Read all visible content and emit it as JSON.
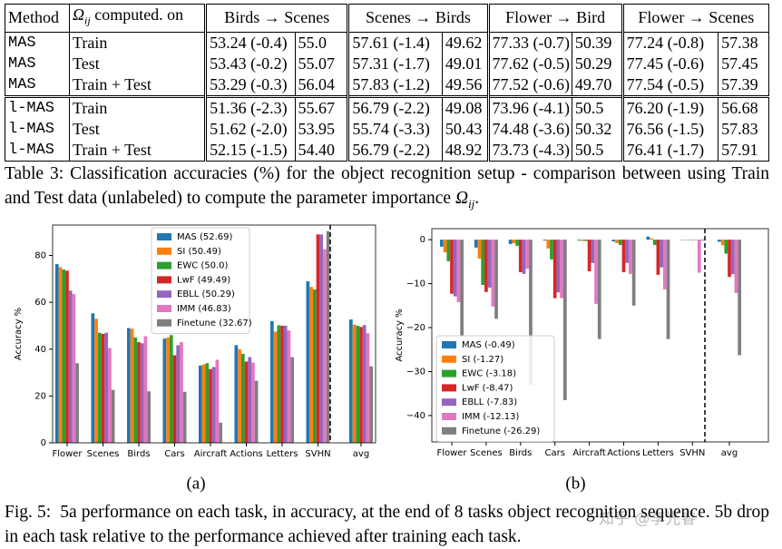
{
  "table": {
    "header": {
      "method": "Method",
      "omega": "Ω",
      "omega_sub": "ij",
      "computed": "computed. on",
      "groups": [
        "Birds → Scenes",
        "Scenes → Birds",
        "Flower → Bird",
        "Flower → Scenes"
      ]
    },
    "rows": [
      [
        "MAS",
        "Train",
        "53.24 (-0.4)",
        "55.0",
        "57.61 (-1.4)",
        "49.62",
        "77.33 (-0.7)",
        "50.39",
        "77.24 (-0.8)",
        "57.38"
      ],
      [
        "MAS",
        "Test",
        "53.43 (-0.2)",
        "55.07",
        "57.31 (-1.7)",
        "49.01",
        "77.62 (-0.5)",
        "50.29",
        "77.45 (-0.6)",
        "57.45"
      ],
      [
        "MAS",
        "Train + Test",
        "53.29 (-0.3)",
        "56.04",
        "57.83 (-1.2)",
        "49.56",
        "77.52 (-0.6)",
        "49.70",
        "77.54 (-0.5)",
        "57.39"
      ],
      [
        "l-MAS",
        "Train",
        "51.36 (-2.3)",
        "55.67",
        "56.79 (-2.2)",
        "49.08",
        "73.96 (-4.1)",
        "50.5",
        "76.20 (-1.9)",
        "56.68"
      ],
      [
        "l-MAS",
        "Test",
        "51.62 (-2.0)",
        "53.95",
        "55.74 (-3.3)",
        "50.43",
        "74.48 (-3.6)",
        "50.32",
        "76.56 (-1.5)",
        "57.83"
      ],
      [
        "l-MAS",
        "Train + Test",
        "52.15 (-1.5)",
        "54.40",
        "56.79 (-2.2)",
        "48.92",
        "73.73 (-4.3)",
        "50.5",
        "76.41 (-1.7)",
        "57.91"
      ]
    ]
  },
  "table_caption": {
    "label": "Table 3:",
    "text": "Classification accuracies (%) for the object recognition setup - comparison between using Train and Test data (unlabeled) to compute the parameter importance ",
    "symbol": "Ω",
    "subscript": "ij",
    "end": "."
  },
  "chart_data": [
    {
      "type": "bar",
      "ylabel": "Accuracy %",
      "panel_label": "(a)",
      "legend": "upper center",
      "divider": true,
      "grid": false,
      "categories": [
        "Flower",
        "Scenes",
        "Birds",
        "Cars",
        "Aircraft",
        "Actions",
        "Letters",
        "SVHN",
        "avg"
      ],
      "ylim": [
        0,
        93
      ],
      "yticks": [
        0,
        20,
        40,
        60,
        80
      ],
      "series": [
        {
          "name": "MAS (52.69)",
          "color": "#1f77b4",
          "values": [
            76.3,
            55.3,
            49,
            44.5,
            33,
            41.7,
            52,
            69,
            52.69
          ]
        },
        {
          "name": "SI (50.49)",
          "color": "#ff7f0e",
          "values": [
            75,
            53,
            48.7,
            45,
            33.5,
            40,
            47.5,
            66.6,
            50.49
          ]
        },
        {
          "name": "EWC (50.0)",
          "color": "#2ca02c",
          "values": [
            74,
            47,
            45,
            46,
            34,
            38,
            50.2,
            65.5,
            50.0
          ]
        },
        {
          "name": "LwF (49.49)",
          "color": "#d62728",
          "values": [
            73.5,
            46.5,
            43,
            37.4,
            31.5,
            34.7,
            50,
            89,
            49.49
          ]
        },
        {
          "name": "EBLL (50.29)",
          "color": "#9467bd",
          "values": [
            65,
            47,
            42.5,
            41.7,
            32.4,
            36.6,
            50,
            89,
            50.29
          ]
        },
        {
          "name": "IMM (46.83)",
          "color": "#e377c2",
          "values": [
            63.5,
            40.5,
            45.5,
            43,
            35.5,
            34.3,
            48,
            82.7,
            46.83
          ]
        },
        {
          "name": "Finetune (32.67)",
          "color": "#7f7f7f",
          "values": [
            34,
            22.6,
            22,
            21.8,
            8.6,
            26.5,
            36.6,
            90.4,
            32.67
          ]
        }
      ]
    },
    {
      "type": "bar",
      "ylabel": "Accuracy %",
      "panel_label": "(b)",
      "legend": "lower left",
      "divider": true,
      "grid": false,
      "categories": [
        "Flower",
        "Scenes",
        "Birds",
        "Cars",
        "Aircraft",
        "Actions",
        "Letters",
        "SVHN",
        "avg"
      ],
      "ylim": [
        -46,
        2.5
      ],
      "yticks": [
        0,
        {
          "value": -10,
          "label": "−10"
        },
        {
          "value": -20,
          "label": "−20"
        },
        {
          "value": -30,
          "label": "−30"
        },
        {
          "value": -40,
          "label": "−40"
        }
      ],
      "series": [
        {
          "name": "MAS (-0.49)",
          "color": "#1f77b4",
          "values": [
            -1.6,
            -1.8,
            -1,
            -0.2,
            -0.2,
            -0.4,
            0.7,
            -0.1,
            -0.49
          ]
        },
        {
          "name": "SI (-1.27)",
          "color": "#ff7f0e",
          "values": [
            -2.9,
            -4.3,
            -0.8,
            -2,
            -0.3,
            -0.8,
            0.3,
            -0.1,
            -1.27
          ]
        },
        {
          "name": "EWC (-3.18)",
          "color": "#2ca02c",
          "values": [
            -4.9,
            -10.3,
            -1.4,
            -4.5,
            -0.3,
            -1.2,
            -1.2,
            -0.1,
            -3.18
          ]
        },
        {
          "name": "LwF (-8.47)",
          "color": "#d62728",
          "values": [
            -12.3,
            -11.9,
            -7.4,
            -13.3,
            -7.2,
            -7.4,
            -8,
            -0.1,
            -8.47
          ]
        },
        {
          "name": "EBLL (-7.83)",
          "color": "#9467bd",
          "values": [
            -12.9,
            -10.9,
            -7.8,
            -12,
            -5.3,
            -5.3,
            -6.3,
            -0.1,
            -7.83
          ]
        },
        {
          "name": "IMM (-12.13)",
          "color": "#e377c2",
          "values": [
            -14.2,
            -15.2,
            -6.6,
            -13.3,
            -14.6,
            -7.8,
            -11.3,
            -7.5,
            -12.13
          ]
        },
        {
          "name": "Finetune (-26.29)",
          "color": "#7f7f7f",
          "values": [
            -22,
            -18,
            -33,
            -36.5,
            -22.6,
            -15,
            -22.6,
            -0.2,
            -26.29
          ]
        }
      ]
    }
  ],
  "figure_caption": {
    "label": "Fig. 5:",
    "text": "5a performance on each task, in accuracy, at the end of 8 tasks object recognition sequence. 5b drop in each task relative to the performance achieved after training each task."
  },
  "watermark": "知乎 @李光睿"
}
